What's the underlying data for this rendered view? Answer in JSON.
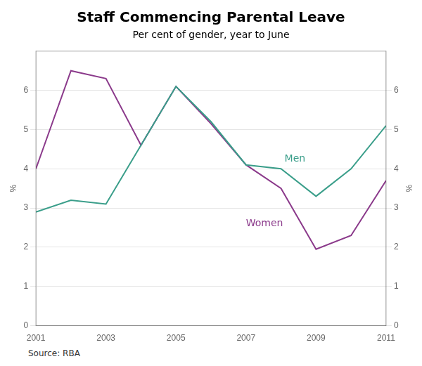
{
  "chart_data": {
    "type": "line",
    "title": "Staff Commencing Parental Leave",
    "subtitle": "Per cent of gender, year to June",
    "source": "Source: RBA",
    "x": [
      2001,
      2002,
      2003,
      2004,
      2005,
      2006,
      2007,
      2008,
      2009,
      2010,
      2011
    ],
    "series": [
      {
        "name": "Men",
        "color": "#3a9e8a",
        "values": [
          2.9,
          3.2,
          3.1,
          4.6,
          6.1,
          5.2,
          4.1,
          4.0,
          3.3,
          4.0,
          5.1
        ]
      },
      {
        "name": "Women",
        "color": "#8b3a8b",
        "values": [
          4.0,
          6.5,
          6.3,
          4.6,
          6.1,
          5.15,
          4.1,
          3.5,
          1.95,
          2.3,
          3.7
        ]
      }
    ],
    "annotations": [
      {
        "text": "Men",
        "x": 2008.1,
        "y": 4.25,
        "color": "#3a9e8a"
      },
      {
        "text": "Women",
        "x": 2007.0,
        "y": 2.6,
        "color": "#8b3a8b"
      }
    ],
    "xlim": [
      2001,
      2011
    ],
    "xticks": [
      2001,
      2003,
      2005,
      2007,
      2009,
      2011
    ],
    "ylim": [
      0,
      7
    ],
    "yticks": [
      0,
      1,
      2,
      3,
      4,
      5,
      6
    ],
    "y2lim": [
      0,
      7
    ],
    "y2ticks": [
      0,
      1,
      2,
      3,
      4,
      5,
      6
    ],
    "ylabel": "%",
    "y2label": "%",
    "grid": true
  }
}
